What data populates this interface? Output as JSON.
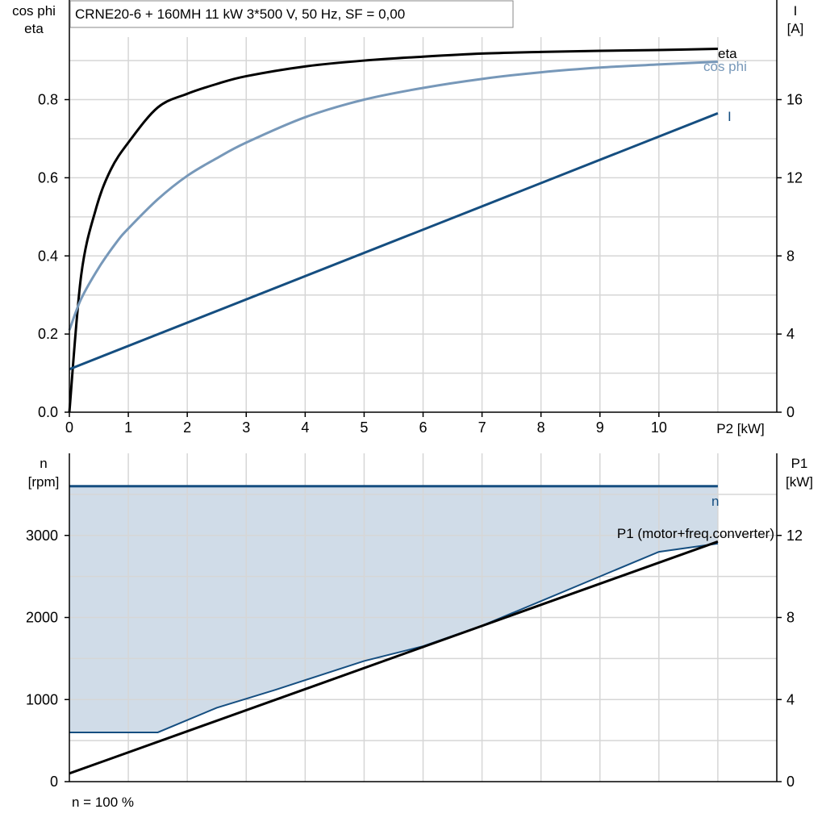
{
  "title": "CRNE20-6 + 160MH   11 kW   3*500 V, 50 Hz, SF = 0,00",
  "footer": "n = 100 %",
  "chart_data": [
    {
      "type": "line",
      "left_axis": {
        "label_line1": "cos phi",
        "label_line2": "eta",
        "ticks": [
          "0.0",
          "0.2",
          "0.4",
          "0.6",
          "0.8"
        ],
        "range": [
          0,
          0.96
        ]
      },
      "right_axis": {
        "label_line1": "I",
        "label_line2": "[A]",
        "ticks": [
          "0",
          "4",
          "8",
          "12",
          "16"
        ],
        "range": [
          0,
          19.2
        ]
      },
      "x_axis": {
        "label": "P2 [kW]",
        "ticks": [
          "0",
          "1",
          "2",
          "3",
          "4",
          "5",
          "6",
          "7",
          "8",
          "9",
          "10"
        ],
        "range": [
          0,
          12
        ]
      },
      "grid": true,
      "series": [
        {
          "name": "eta",
          "axis": "left",
          "color": "#000000",
          "x": [
            0,
            0.2,
            0.45,
            0.7,
            1.0,
            1.5,
            2.0,
            2.5,
            3.0,
            4.0,
            5.0,
            6.0,
            7.0,
            8.0,
            9.0,
            10.0,
            11.0
          ],
          "y": [
            0.0,
            0.35,
            0.52,
            0.62,
            0.69,
            0.78,
            0.815,
            0.84,
            0.86,
            0.885,
            0.9,
            0.91,
            0.918,
            0.922,
            0.925,
            0.927,
            0.93
          ]
        },
        {
          "name": "cos phi",
          "axis": "left",
          "color": "#7798b9",
          "x": [
            0,
            0.2,
            0.5,
            0.8,
            1.0,
            1.5,
            2.0,
            2.5,
            3.0,
            4.0,
            5.0,
            6.0,
            7.0,
            8.0,
            9.0,
            10.0,
            11.0
          ],
          "y": [
            0.21,
            0.29,
            0.37,
            0.435,
            0.47,
            0.545,
            0.605,
            0.65,
            0.69,
            0.755,
            0.8,
            0.83,
            0.853,
            0.87,
            0.882,
            0.89,
            0.897
          ]
        },
        {
          "name": "I",
          "axis": "right",
          "color": "#154e80",
          "x": [
            0,
            11.0
          ],
          "y": [
            2.2,
            15.3
          ]
        }
      ]
    },
    {
      "type": "area",
      "left_axis": {
        "label_line1": "n",
        "label_line2": "[rpm]",
        "ticks": [
          "0",
          "1000",
          "2000",
          "3000"
        ],
        "range": [
          0,
          4000
        ]
      },
      "right_axis": {
        "label_line1": "P1",
        "label_line2": "[kW]",
        "ticks": [
          "0",
          "4",
          "8",
          "12"
        ],
        "range": [
          0,
          16
        ]
      },
      "x_axis": {
        "range": [
          0,
          12
        ]
      },
      "grid": true,
      "series": [
        {
          "name": "n",
          "axis": "left",
          "color": "#154e80",
          "x": [
            0,
            11.0
          ],
          "y": [
            3600,
            3600
          ]
        },
        {
          "name": "",
          "axis": "left",
          "color": "#154e80",
          "role": "lower-boundary",
          "x": [
            0,
            1.5,
            2.5,
            3.5,
            5.0,
            6.0,
            7.0,
            8.0,
            9.0,
            10.0,
            11.0
          ],
          "y": [
            600,
            600,
            900,
            1120,
            1470,
            1650,
            1900,
            2200,
            2500,
            2800,
            2900
          ]
        },
        {
          "name": "P1 (motor+freq.converter)",
          "axis": "right",
          "color": "#000000",
          "x": [
            0,
            11.0
          ],
          "y": [
            0.4,
            11.7
          ]
        }
      ],
      "fill_color": "#d0dce8"
    }
  ]
}
